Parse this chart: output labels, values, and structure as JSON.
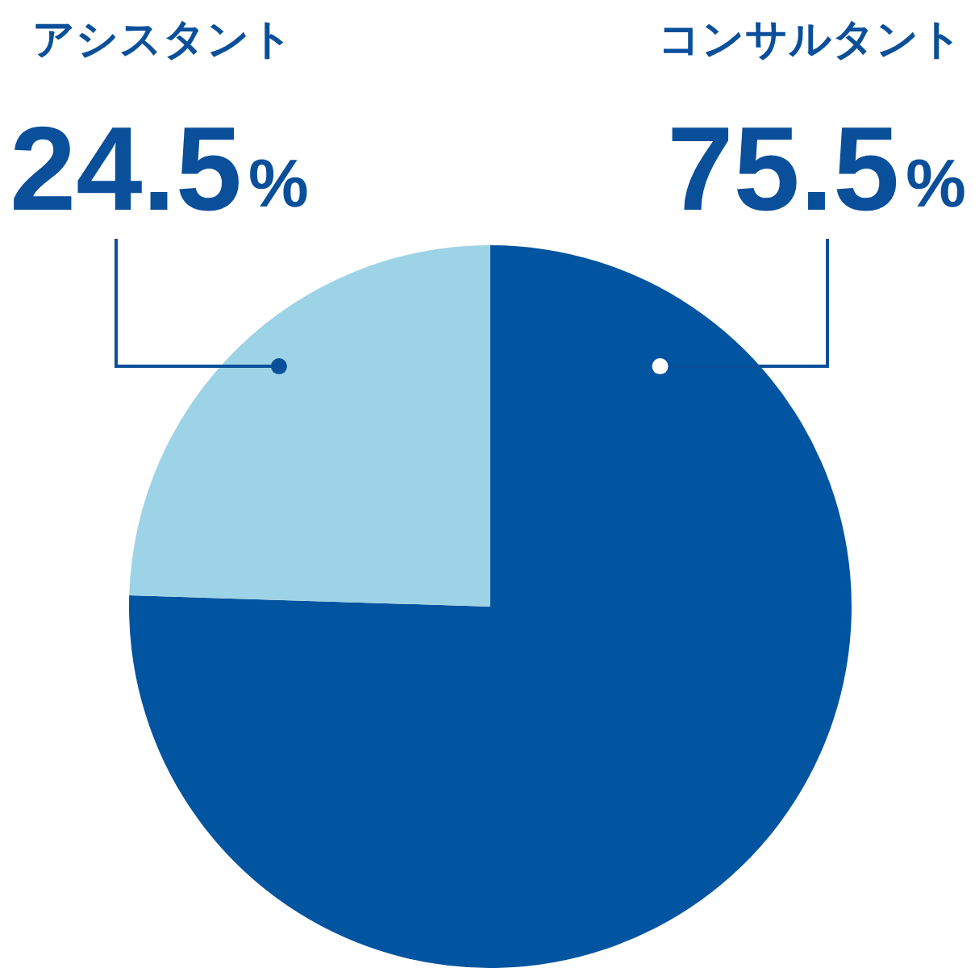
{
  "chart_data": {
    "type": "pie",
    "categories": [
      "コンサルタント",
      "アシスタント"
    ],
    "values": [
      75.5,
      24.5
    ],
    "colors": [
      "#0054a0",
      "#9dd3e6"
    ],
    "value_labels": [
      "75.5%",
      "24.5%"
    ],
    "legend": false
  }
}
